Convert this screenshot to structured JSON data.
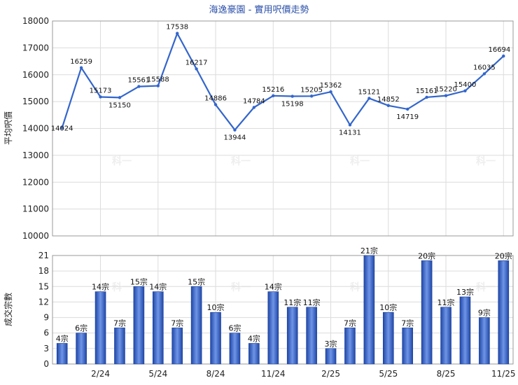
{
  "title": "海逸豪園 - 實用呎價走勢",
  "watermark": "科一",
  "chart_data": [
    {
      "type": "line",
      "ylabel": "平均呎價",
      "ylim": [
        10000,
        18000
      ],
      "yticks": [
        10000,
        11000,
        12000,
        13000,
        14000,
        15000,
        16000,
        17000,
        18000
      ],
      "line_color": "#3366cc",
      "grid": true,
      "series": [
        {
          "values": [
            14024,
            16259,
            15173,
            15150,
            15561,
            15588,
            17538,
            16217,
            14886,
            13944,
            14784,
            15216,
            15198,
            15205,
            15362,
            14131,
            15121,
            14852,
            14719,
            15161,
            15220,
            15400,
            16035,
            16694
          ]
        }
      ]
    },
    {
      "type": "bar",
      "ylabel": "成交宗數",
      "ylim": [
        0,
        21
      ],
      "yticks": [
        0,
        3,
        6,
        9,
        12,
        15,
        18,
        21
      ],
      "x_tick_labels": [
        "2/24",
        "5/24",
        "8/24",
        "11/24",
        "2/25",
        "5/25",
        "8/25",
        "11/25"
      ],
      "x_tick_indices": [
        2,
        5,
        8,
        11,
        14,
        17,
        20,
        23
      ],
      "bar_label_suffix": "宗",
      "bar_color": "#3a66c4",
      "grid": true,
      "values": [
        4,
        6,
        14,
        7,
        15,
        14,
        7,
        15,
        10,
        6,
        4,
        14,
        11,
        11,
        3,
        7,
        21,
        10,
        7,
        20,
        11,
        13,
        9,
        20
      ]
    }
  ]
}
